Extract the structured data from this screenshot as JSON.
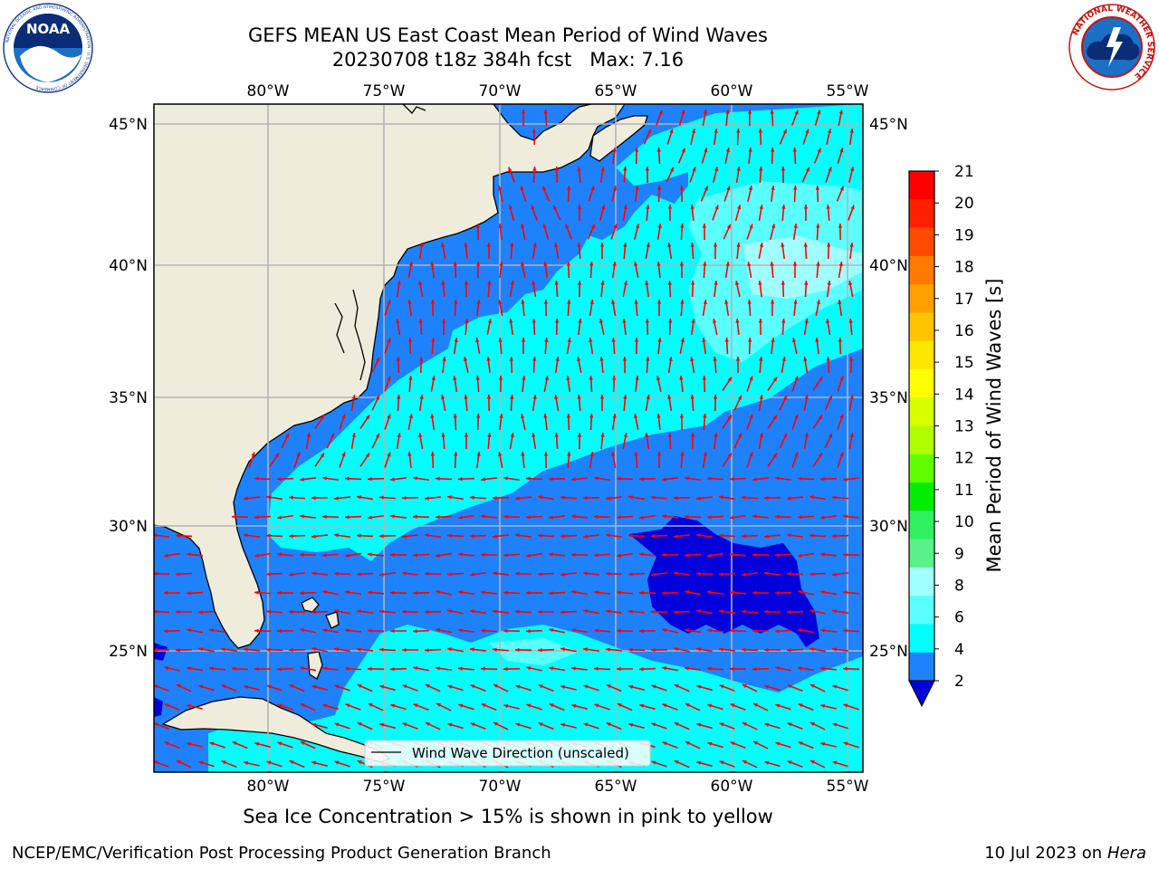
{
  "title": {
    "line1": "GEFS MEAN US East Coast Mean Period of Wind Waves",
    "line2": "20230708 t18z 384h fcst   Max: 7.16"
  },
  "map": {
    "lon_ticks": [
      "80°W",
      "75°W",
      "70°W",
      "65°W",
      "60°W",
      "55°W"
    ],
    "lat_ticks": [
      "45°N",
      "40°N",
      "35°N",
      "30°N",
      "25°N"
    ],
    "legend_label": "Wind Wave Direction (unscaled)",
    "colors": {
      "land": "#efecdb",
      "band_2_4": "#1e82ff",
      "band_lt2": "#0000dc",
      "band_4_6": "#00ffff",
      "band_6_8": "#5affff",
      "band_8_9": "#a0ffff",
      "arrow": "#ff0000",
      "grid": "#b4b4b4"
    }
  },
  "colorbar": {
    "label": "Mean Period of Wind Waves [s]",
    "ticks": [
      "21",
      "20",
      "19",
      "18",
      "17",
      "16",
      "15",
      "14",
      "13",
      "12",
      "11",
      "10",
      "9",
      "8",
      "6",
      "4",
      "2"
    ],
    "colors": [
      "#ff0000",
      "#ff2000",
      "#ff4a00",
      "#ff7a00",
      "#ffa000",
      "#ffc400",
      "#ffe600",
      "#ffff00",
      "#d8ff00",
      "#b0ff00",
      "#60ff00",
      "#00ee00",
      "#30f060",
      "#5af08a",
      "#a0ffff",
      "#5affff",
      "#00ffff",
      "#1e82ff"
    ],
    "extend_color": "#0000dc"
  },
  "logos": {
    "noaa_text": "NOAA",
    "noaa_ring": "NATIONAL OCEANIC AND ATMOSPHERIC ADMINISTRATION · U.S. DEPARTMENT OF COMMERCE",
    "nws_ring": "NATIONAL WEATHER SERVICE"
  },
  "footer": {
    "subtitle": "Sea Ice Concentration > 15% is shown in pink to yellow",
    "left": "NCEP/EMC/Verification Post Processing Product Generation Branch",
    "date": "10 Jul 2023 on ",
    "host": "Hera"
  }
}
